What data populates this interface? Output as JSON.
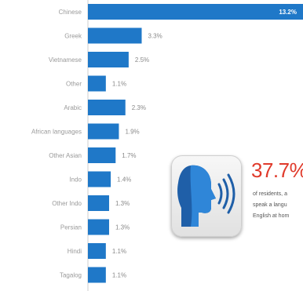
{
  "chart_data": {
    "type": "bar",
    "orientation": "horizontal",
    "categories": [
      "Chinese",
      "Greek",
      "Vietnamese",
      "Other",
      "Arabic",
      "African languages",
      "Other Asian",
      "Indo",
      "Other Indo",
      "Persian",
      "Hindi",
      "Tagalog"
    ],
    "values": [
      13.2,
      3.3,
      2.5,
      1.1,
      2.3,
      1.9,
      1.7,
      1.4,
      1.3,
      1.3,
      1.1,
      1.1
    ],
    "value_labels": [
      "13.2%",
      "3.3%",
      "2.5%",
      "1.1%",
      "2.3%",
      "1.9%",
      "1.7%",
      "1.4%",
      "1.3%",
      "1.3%",
      "1.1%",
      "1.1%"
    ],
    "bar_color": "#1f78c8",
    "xlim": [
      0,
      13.2
    ],
    "grid": false,
    "title": "",
    "xlabel": "",
    "ylabel": ""
  },
  "callout": {
    "stat": "37.7%",
    "line1": "of residents, a",
    "line2": "speak a langu",
    "line3": "English at hom",
    "stat_color": "#e03a2b",
    "icon": "speaking-head-icon"
  }
}
